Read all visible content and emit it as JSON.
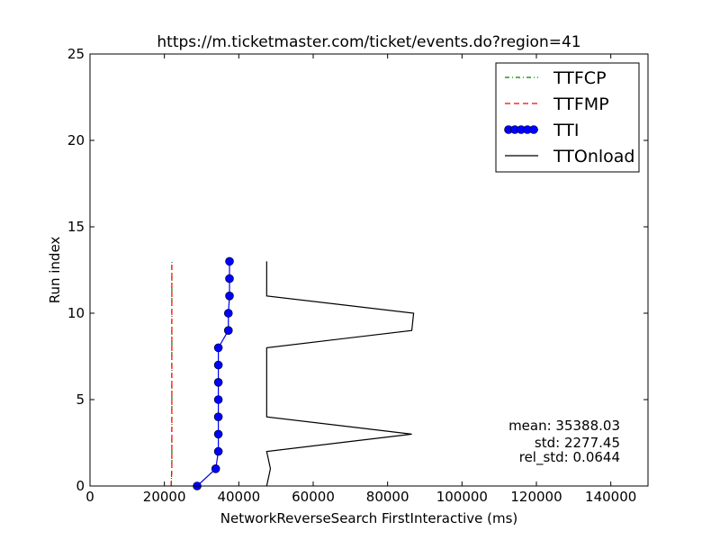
{
  "chart_data": {
    "type": "line",
    "title": "https://m.ticketmaster.com/ticket/events.do?region=41",
    "xlabel": "NetworkReverseSearch FirstInteractive (ms)",
    "ylabel": "Run index",
    "xlim": [
      0,
      150000
    ],
    "ylim": [
      0,
      25
    ],
    "xticks": [
      0,
      20000,
      40000,
      60000,
      80000,
      100000,
      120000,
      140000
    ],
    "yticks": [
      0,
      5,
      10,
      15,
      20,
      25
    ],
    "x_tick_labels": [
      "0",
      "20000",
      "40000",
      "60000",
      "80000",
      "100000",
      "120000",
      "140000"
    ],
    "y_tick_labels": [
      "0",
      "5",
      "10",
      "15",
      "20",
      "25"
    ],
    "grid": false,
    "legend_position": "top-right",
    "series": [
      {
        "name": "TTFCP",
        "color": "#008000",
        "style": "dashdot",
        "x": [
          21800,
          22000,
          22000,
          22000,
          22000,
          22000,
          22000,
          22000,
          22000,
          22000,
          22000,
          22000,
          22000,
          22000
        ],
        "y": [
          0,
          1,
          2,
          3,
          4,
          5,
          6,
          7,
          8,
          9,
          10,
          11,
          12,
          13
        ]
      },
      {
        "name": "TTFMP",
        "color": "#ff0000",
        "style": "dashed",
        "x": [
          21800,
          22000,
          22000,
          22000,
          22000,
          22000,
          22000,
          22000,
          22000,
          22000,
          22000,
          22000,
          22000,
          22000
        ],
        "y": [
          0,
          1,
          2,
          3,
          4,
          5,
          6,
          7,
          8,
          9,
          10,
          11,
          12,
          13
        ]
      },
      {
        "name": "TTI",
        "color": "#0000ff",
        "style": "solid-markers",
        "x": [
          28800,
          33800,
          34500,
          34500,
          34500,
          34500,
          34500,
          34500,
          34500,
          37200,
          37200,
          37500,
          37500,
          37500
        ],
        "y": [
          0,
          1,
          2,
          3,
          4,
          5,
          6,
          7,
          8,
          9,
          10,
          11,
          12,
          13
        ]
      },
      {
        "name": "TTOnload",
        "color": "#000000",
        "style": "solid",
        "x": [
          47500,
          48500,
          47500,
          86500,
          47500,
          47500,
          47500,
          47500,
          47500,
          86500,
          87000,
          47500,
          47500,
          47500
        ],
        "y": [
          0,
          1,
          2,
          3,
          4,
          5,
          6,
          7,
          8,
          9,
          10,
          11,
          12,
          13
        ]
      }
    ],
    "annotations": [
      "mean: 35388.03",
      "std: 2277.45",
      "rel_std: 0.0644"
    ]
  }
}
